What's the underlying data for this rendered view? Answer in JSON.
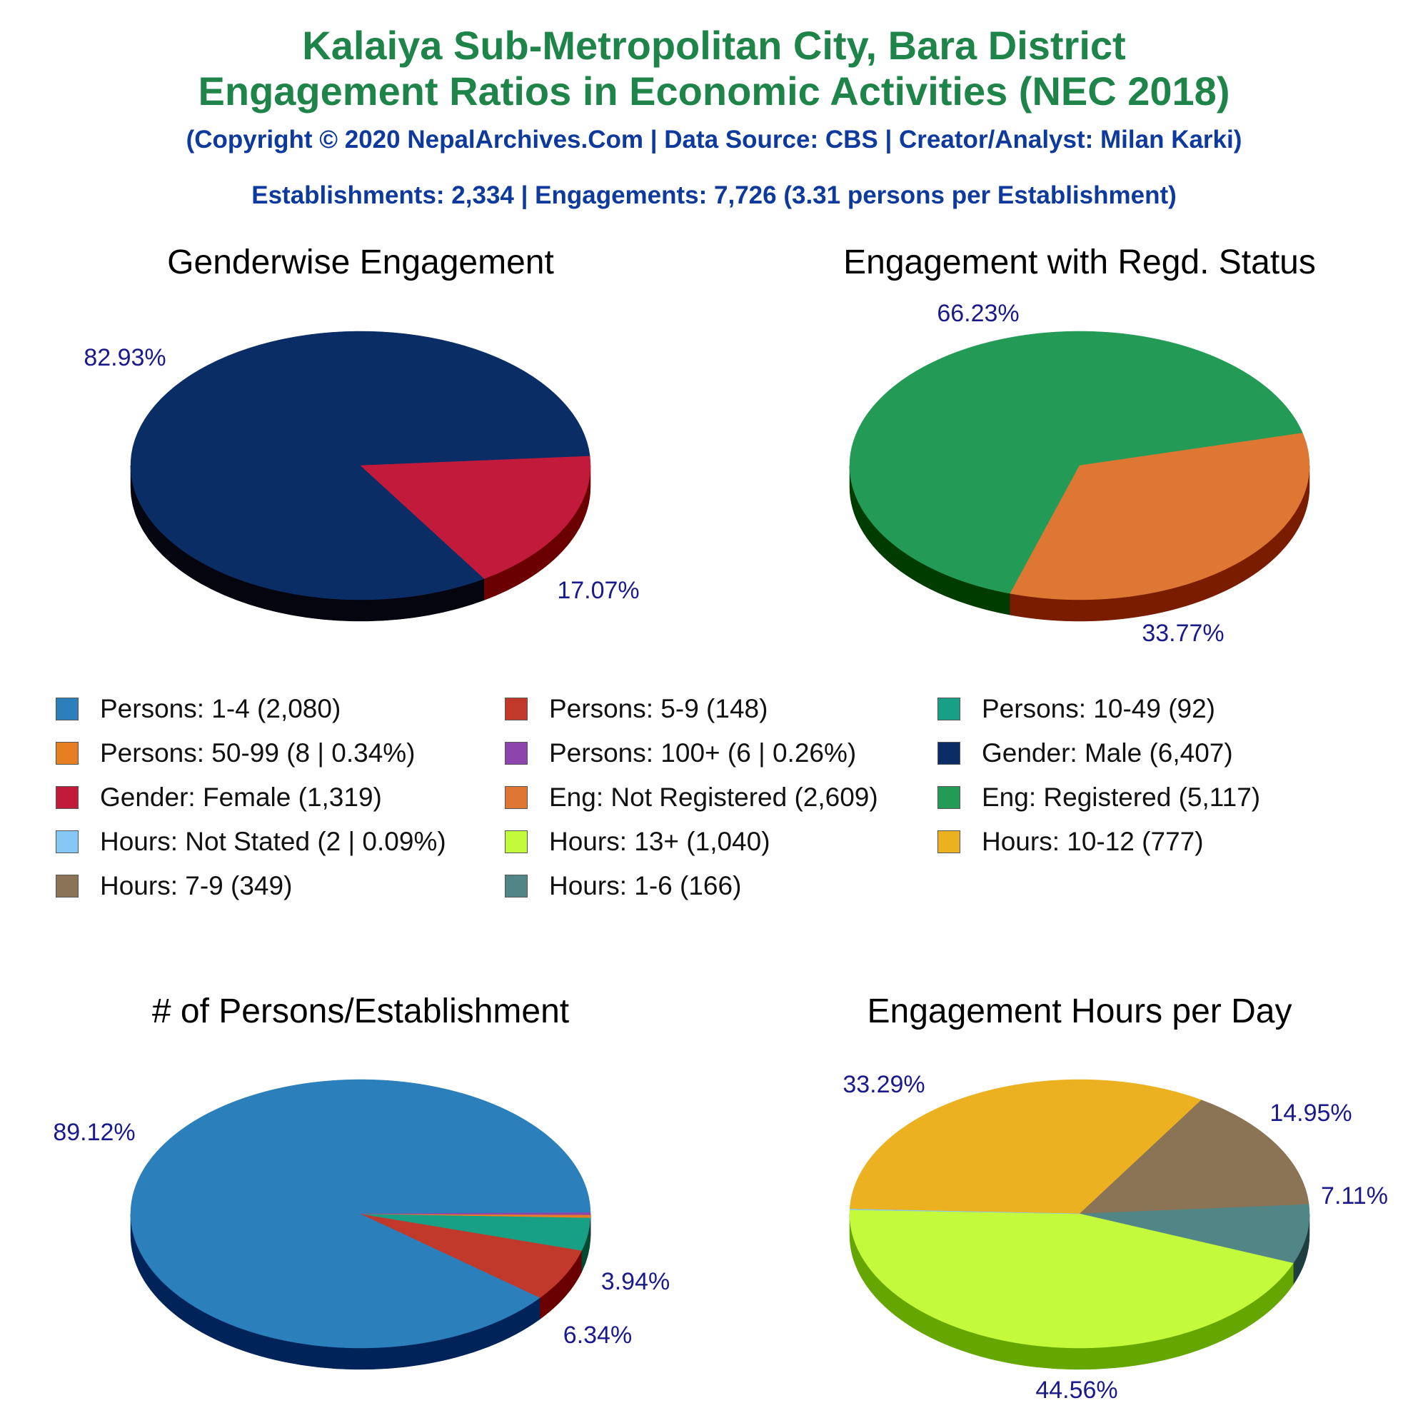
{
  "header": {
    "title_line1": "Kalaiya Sub-Metropolitan City, Bara District",
    "title_line2": "Engagement Ratios in Economic Activities (NEC 2018)",
    "credits": "(Copyright © 2020 NepalArchives.Com | Data Source: CBS | Creator/Analyst: Milan Karki)",
    "summary": "Establishments: 2,334 | Engagements: 7,726 (3.31 persons per Establishment)"
  },
  "legend": [
    {
      "label": "Persons: 1-4 (2,080)",
      "color": "#2b7fba"
    },
    {
      "label": "Persons: 5-9 (148)",
      "color": "#c0392b"
    },
    {
      "label": "Persons: 10-49 (92)",
      "color": "#17a085"
    },
    {
      "label": "Persons: 50-99 (8 | 0.34%)",
      "color": "#e67e22"
    },
    {
      "label": "Persons: 100+ (6 | 0.26%)",
      "color": "#8e44ad"
    },
    {
      "label": "Gender: Male (6,407)",
      "color": "#0b2d66"
    },
    {
      "label": "Gender: Female (1,319)",
      "color": "#c21a3a"
    },
    {
      "label": "Eng: Not Registered (2,609)",
      "color": "#dd7733"
    },
    {
      "label": "Eng: Registered (5,117)",
      "color": "#239b56"
    },
    {
      "label": "Hours: Not Stated (2 | 0.09%)",
      "color": "#85c8f5"
    },
    {
      "label": "Hours: 13+ (1,040)",
      "color": "#c3fa3c"
    },
    {
      "label": "Hours: 10-12 (777)",
      "color": "#ecb121"
    },
    {
      "label": "Hours: 7-9 (349)",
      "color": "#8b7355"
    },
    {
      "label": "Hours: 1-6 (166)",
      "color": "#528585"
    }
  ],
  "chart_data": [
    {
      "type": "pie",
      "title": "Genderwise Engagement",
      "slices": [
        {
          "category": "Gender: Male",
          "value": 82.93,
          "label": "82.93%",
          "color": "#0b2d66",
          "side": "#05050f"
        },
        {
          "category": "Gender: Female",
          "value": 17.07,
          "label": "17.07%",
          "color": "#c21a3a",
          "side": "#6a0000"
        }
      ]
    },
    {
      "type": "pie",
      "title": "Engagement with Regd. Status",
      "slices": [
        {
          "category": "Eng: Registered",
          "value": 66.23,
          "label": "66.23%",
          "color": "#239b56",
          "side": "#003c00"
        },
        {
          "category": "Eng: Not Registered",
          "value": 33.77,
          "label": "33.77%",
          "color": "#dd7733",
          "side": "#7a1c00"
        }
      ]
    },
    {
      "type": "pie",
      "title": "# of Persons/Establishment",
      "slices": [
        {
          "category": "Persons: 1-4",
          "value": 89.12,
          "label": "89.12%",
          "color": "#2b7fba",
          "side": "#00245a"
        },
        {
          "category": "Persons: 5-9",
          "value": 6.34,
          "label": "6.34%",
          "color": "#c0392b",
          "side": "#6a0000"
        },
        {
          "category": "Persons: 10-49",
          "value": 3.94,
          "label": "3.94%",
          "color": "#17a085",
          "side": "#004a30"
        },
        {
          "category": "Persons: 50-99",
          "value": 0.34,
          "label": "",
          "color": "#e67e22",
          "side": "#7a3300"
        },
        {
          "category": "Persons: 100+",
          "value": 0.26,
          "label": "",
          "color": "#8e44ad",
          "side": "#3a0055"
        }
      ]
    },
    {
      "type": "pie",
      "title": "Engagement Hours per Day",
      "slices": [
        {
          "category": "Hours: 10-12",
          "value": 33.29,
          "label": "33.29%",
          "color": "#ecb121",
          "side": "#7a5500"
        },
        {
          "category": "Hours: 7-9",
          "value": 14.95,
          "label": "14.95%",
          "color": "#8b7355",
          "side": "#3a2a10"
        },
        {
          "category": "Hours: 1-6",
          "value": 7.11,
          "label": "7.11%",
          "color": "#528585",
          "side": "#1f3f3f"
        },
        {
          "category": "Hours: 13+",
          "value": 44.56,
          "label": "44.56%",
          "color": "#c3fa3c",
          "side": "#66a600"
        },
        {
          "category": "Hours: Not Stated",
          "value": 0.09,
          "label": "",
          "color": "#85c8f5",
          "side": "#3a6a90"
        }
      ]
    }
  ]
}
